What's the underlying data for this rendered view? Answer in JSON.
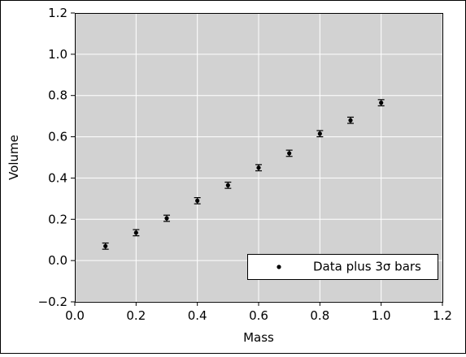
{
  "chart_data": {
    "type": "scatter",
    "title": "",
    "xlabel": "Mass",
    "ylabel": "Volume",
    "xlim": [
      0.0,
      1.2
    ],
    "ylim": [
      -0.2,
      1.2
    ],
    "xticks": [
      "0.0",
      "0.2",
      "0.4",
      "0.6",
      "0.8",
      "1.0",
      "1.2"
    ],
    "yticks": [
      "−0.2",
      "0.0",
      "0.2",
      "0.4",
      "0.6",
      "0.8",
      "1.0",
      "1.2"
    ],
    "grid": true,
    "legend_position": "bottom-right",
    "series": [
      {
        "name": "Data plus 3σ bars",
        "x": [
          0.1,
          0.2,
          0.3,
          0.4,
          0.5,
          0.6,
          0.7,
          0.8,
          0.9,
          1.0
        ],
        "y": [
          0.07,
          0.135,
          0.205,
          0.29,
          0.365,
          0.45,
          0.52,
          0.615,
          0.68,
          0.765
        ],
        "error": [
          0.015,
          0.015,
          0.015,
          0.015,
          0.015,
          0.015,
          0.015,
          0.015,
          0.015,
          0.015
        ]
      }
    ],
    "colors": {
      "plot_background": "#d2d2d2",
      "grid": "#ffffff",
      "marker": "#000000"
    }
  }
}
